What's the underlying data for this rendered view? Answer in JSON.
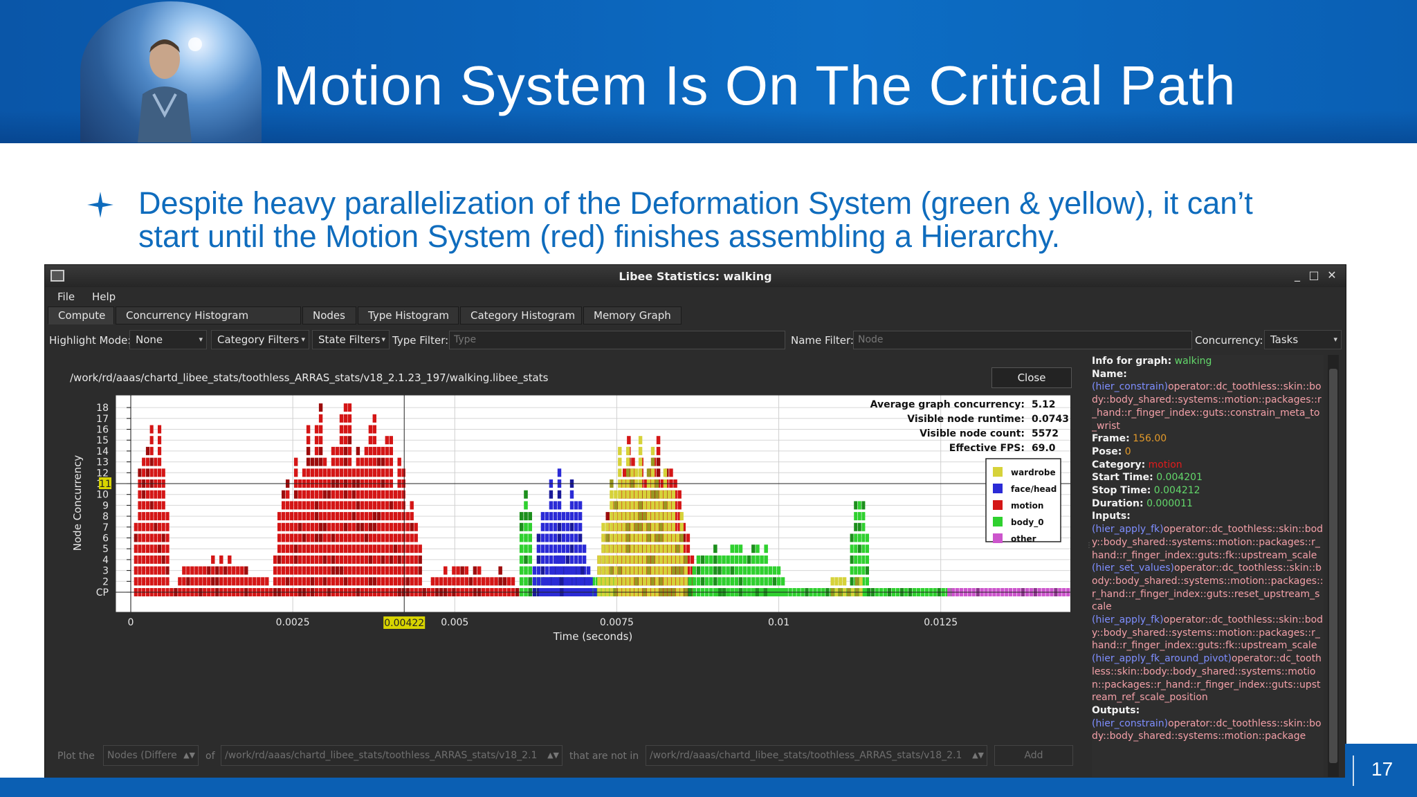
{
  "slide": {
    "title": "Motion System Is On The Critical Path",
    "bullet": "Despite heavy parallelization of the Deformation System (green & yellow), it can’t start until the Motion System (red) finishes assembling a Hierarchy.",
    "page_number": "17"
  },
  "window": {
    "title": "Libee Statistics: walking",
    "controls": [
      "_",
      "□",
      "✕"
    ]
  },
  "menu": [
    "File",
    "Help"
  ],
  "tabs": [
    "Compute",
    "Concurrency Histogram",
    "Nodes",
    "Type Histogram",
    "Category Histogram",
    "Memory Graph"
  ],
  "filters": {
    "highlight_label": "Highlight Mode:",
    "highlight_value": "None",
    "category_filters": "Category Filters",
    "state_filters": "State Filters",
    "type_label": "Type Filter:",
    "type_placeholder": "Type",
    "name_label": "Name Filter:",
    "name_placeholder": "Node",
    "concurrency_label": "Concurrency:",
    "concurrency_value": "Tasks"
  },
  "panel": {
    "path": "/work/rd/aaas/chartd_libee_stats/toothless_ARRAS_stats/v18_2.1.23_197/walking.libee_stats",
    "close_label": "Close"
  },
  "stats": {
    "avg_label": "Average graph concurrency:",
    "avg_value": "5.12",
    "runtime_label": "Visible node runtime:",
    "runtime_value": "0.0743",
    "count_label": "Visible node count:",
    "count_value": "5572",
    "fps_label": "Effective FPS:",
    "fps_value": "69.0"
  },
  "chart_data": {
    "type": "bar",
    "xlabel": "Time (seconds)",
    "ylabel": "Node Concurrency",
    "xlim": [
      0,
      0.0145
    ],
    "ylim": [
      0,
      19
    ],
    "x_ticks": [
      "0",
      "0.0025",
      "0.005",
      "0.0075",
      "0.01",
      "0.0125"
    ],
    "x_tick_values": [
      0,
      0.0025,
      0.005,
      0.0075,
      0.01,
      0.0125
    ],
    "y_ticks": [
      "CP",
      "2",
      "3",
      "4",
      "5",
      "6",
      "7",
      "8",
      "9",
      "10",
      "11",
      "12",
      "13",
      "14",
      "15",
      "16",
      "17",
      "18"
    ],
    "cursor_x": 0.00422,
    "cursor_x_label": "0.00422",
    "cursor_y_label": "11",
    "legend": [
      {
        "name": "wardrobe",
        "color": "#d6d23a"
      },
      {
        "name": "face/head",
        "color": "#2b2bd6"
      },
      {
        "name": "motion",
        "color": "#d41616"
      },
      {
        "name": "body_0",
        "color": "#2fd02f"
      },
      {
        "name": "other",
        "color": "#cc55cc"
      }
    ],
    "series": [
      {
        "name": "motion",
        "color": "#d41616",
        "regions": [
          {
            "x0": 5e-05,
            "x1": 0.0006,
            "peak": 17.5
          },
          {
            "x0": 0.0006,
            "x1": 0.0022,
            "peak": 4
          },
          {
            "x0": 0.0022,
            "x1": 0.0045,
            "peak": 18.3
          },
          {
            "x0": 0.0045,
            "x1": 0.006,
            "peak": 3.5
          },
          {
            "x0": 0.0072,
            "x1": 0.0087,
            "peak": 15.5
          }
        ]
      },
      {
        "name": "body_0",
        "color": "#2fd02f",
        "regions": [
          {
            "x0": 0.006,
            "x1": 0.0062,
            "peak": 13
          },
          {
            "x0": 0.0062,
            "x1": 0.0075,
            "peak": 2
          },
          {
            "x0": 0.0086,
            "x1": 0.0101,
            "peak": 6
          },
          {
            "x0": 0.0111,
            "x1": 0.0114,
            "peak": 14
          },
          {
            "x0": 0.009,
            "x1": 0.0127,
            "peak": 1
          }
        ]
      },
      {
        "name": "wardrobe",
        "color": "#d6d23a",
        "regions": [
          {
            "x0": 0.0072,
            "x1": 0.0086,
            "peak": 15
          },
          {
            "x0": 0.0108,
            "x1": 0.0113,
            "peak": 2
          }
        ]
      },
      {
        "name": "face/head",
        "color": "#2b2bd6",
        "regions": [
          {
            "x0": 0.0062,
            "x1": 0.0071,
            "peak": 12
          },
          {
            "x0": 0.0063,
            "x1": 0.0072,
            "peak": 4
          }
        ]
      },
      {
        "name": "other",
        "color": "#cc55cc",
        "regions": [
          {
            "x0": 0.0126,
            "x1": 0.0145,
            "peak": 1
          }
        ]
      }
    ]
  },
  "info": {
    "graph_label": "Info for graph:",
    "graph_value": "walking",
    "name_label": "Name:",
    "name_tag": "(hier_constrain)",
    "name_text": "operator::dc_toothless::skin::body::body_shared::systems::motion::packages::r_hand::r_finger_index::guts::constrain_meta_to_wrist",
    "frame_label": "Frame:",
    "frame_value": "156.00",
    "pose_label": "Pose:",
    "pose_value": "0",
    "category_label": "Category:",
    "category_value": "motion",
    "start_label": "Start Time:",
    "start_value": "0.004201",
    "stop_label": "Stop Time:",
    "stop_value": "0.004212",
    "duration_label": "Duration:",
    "duration_value": "0.000011",
    "inputs_label": "Inputs:",
    "inputs": [
      {
        "tag": "(hier_apply_fk)",
        "text": "operator::dc_toothless::skin::body::body_shared::systems::motion::packages::r_hand::r_finger_index::guts::fk::upstream_scale"
      },
      {
        "tag": "(hier_set_values)",
        "text": "operator::dc_toothless::skin::body::body_shared::systems::motion::packages::r_hand::r_finger_index::guts::reset_upstream_scale"
      },
      {
        "tag": "(hier_apply_fk)",
        "text": "operator::dc_toothless::skin::body::body_shared::systems::motion::packages::r_hand::r_finger_index::guts::fk::upstream_scale"
      },
      {
        "tag": "(hier_apply_fk_around_pivot)",
        "text": "operator::dc_toothless::skin::body::body_shared::systems::motion::packages::r_hand::r_finger_index::guts::upstream_ref_scale_position"
      }
    ],
    "outputs_label": "Outputs:",
    "outputs": [
      {
        "tag": "(hier_constrain)",
        "text": "operator::dc_toothless::skin::body::body_shared::systems::motion::package"
      }
    ]
  },
  "bottom": {
    "plot_the": "Plot the",
    "nodes_combo": "Nodes (Differe",
    "of": "of",
    "path_a": "/work/rd/aaas/chartd_libee_stats/toothless_ARRAS_stats/v18_2.1",
    "not_in": "that are not in",
    "path_b": "/work/rd/aaas/chartd_libee_stats/toothless_ARRAS_stats/v18_2.1",
    "add": "Add"
  }
}
